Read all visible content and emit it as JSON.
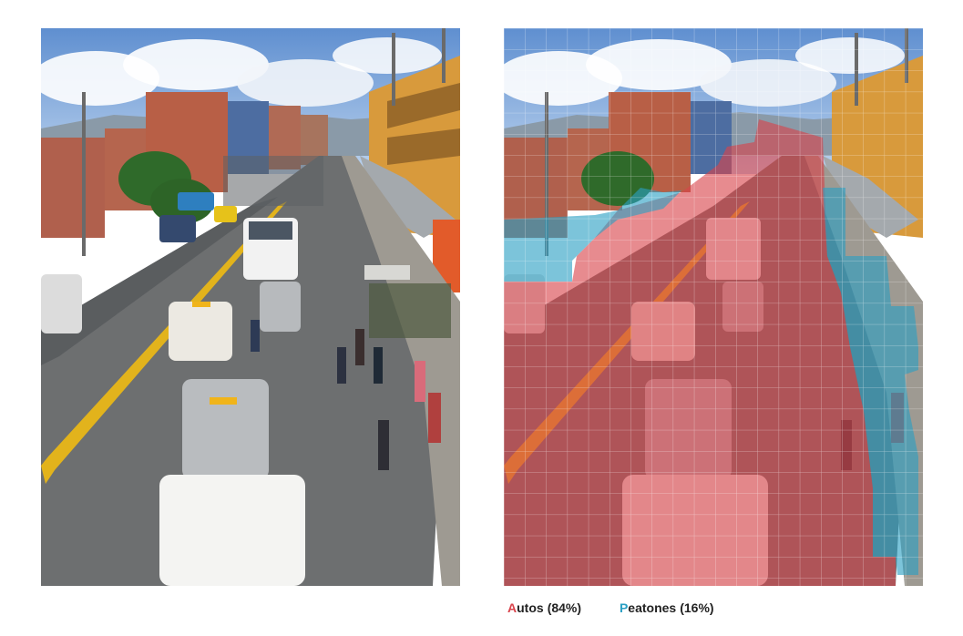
{
  "colors": {
    "autos": "#d9434b",
    "peatones": "#2ba0c4"
  },
  "legend": {
    "autos": {
      "initial": "A",
      "rest": "utos",
      "pct": "(84%)"
    },
    "peatones": {
      "initial": "P",
      "rest": "eatones",
      "pct": "(16%)"
    }
  },
  "chart_data": {
    "type": "pie",
    "categories": [
      "Autos",
      "Peatones"
    ],
    "values": [
      84,
      16
    ],
    "title": ""
  }
}
